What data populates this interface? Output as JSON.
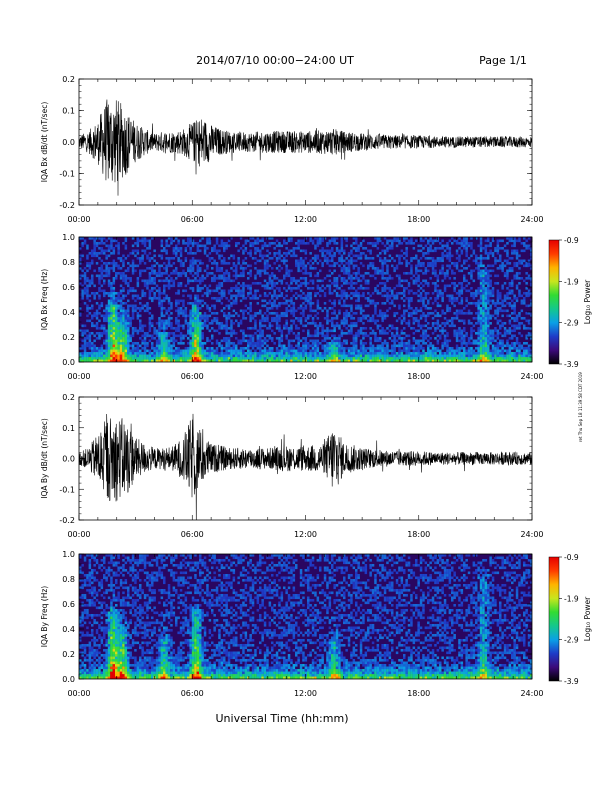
{
  "header": {
    "title": "2014/07/10  00:00−24:00 UT",
    "page": "Page 1/1"
  },
  "footer": {
    "xlabel": "Universal Time (hh:mm)",
    "side_note": "ret Thu Sep 18 11:39:58 CDT 2019"
  },
  "colorbar": {
    "label": "Log₁₀ Power",
    "ticks": [
      "-0.9",
      "-1.9",
      "-2.9",
      "-3.9"
    ],
    "stops": [
      "#000000",
      "#3c0a7a",
      "#1e3cc8",
      "#0aa0e6",
      "#14c88c",
      "#32dc32",
      "#c8e61e",
      "#ffb400",
      "#ff3c00",
      "#e60000"
    ]
  },
  "chart_data": [
    {
      "type": "line",
      "ylabel": "IQA Bx dB/dt (nT/sec)",
      "x_ticks": [
        "00:00",
        "06:00",
        "12:00",
        "18:00",
        "24:00"
      ],
      "y_ticks": [
        "0.2",
        "0.1",
        "0.0",
        "-0.1",
        "-0.2"
      ],
      "xlim": [
        0,
        24
      ],
      "ylim": [
        -0.2,
        0.2
      ],
      "envelope": {
        "x": [
          0,
          0.5,
          1,
          1.5,
          2,
          2.5,
          3,
          3.5,
          4,
          4.5,
          5,
          5.5,
          6,
          6.5,
          7,
          7.5,
          8,
          9,
          10,
          11,
          12,
          13,
          13.5,
          14,
          15,
          16,
          17,
          18,
          19,
          20,
          21,
          22,
          23,
          24
        ],
        "amplitude": [
          0.03,
          0.05,
          0.1,
          0.2,
          0.2,
          0.15,
          0.09,
          0.06,
          0.04,
          0.05,
          0.05,
          0.06,
          0.09,
          0.12,
          0.08,
          0.06,
          0.05,
          0.045,
          0.05,
          0.05,
          0.05,
          0.055,
          0.06,
          0.05,
          0.04,
          0.035,
          0.03,
          0.03,
          0.025,
          0.025,
          0.025,
          0.025,
          0.025,
          0.025
        ]
      }
    },
    {
      "type": "heatmap",
      "ylabel": "IQA Bx Freq (Hz)",
      "x_ticks": [
        "00:00",
        "06:00",
        "12:00",
        "18:00",
        "24:00"
      ],
      "y_ticks": [
        "1.0",
        "0.8",
        "0.6",
        "0.4",
        "0.2",
        "0.0"
      ],
      "xlim": [
        0,
        24
      ],
      "ylim": [
        0,
        1.0
      ],
      "zlim": [
        -3.9,
        -0.9
      ],
      "bursts": [
        {
          "x": 1.8,
          "peak_freq": 0.45,
          "intensity": 0.9
        },
        {
          "x": 2.3,
          "peak_freq": 0.3,
          "intensity": 0.7
        },
        {
          "x": 4.5,
          "peak_freq": 0.2,
          "intensity": 0.4
        },
        {
          "x": 6.2,
          "peak_freq": 0.4,
          "intensity": 0.8
        },
        {
          "x": 13.5,
          "peak_freq": 0.15,
          "intensity": 0.35
        },
        {
          "x": 21.4,
          "peak_freq": 0.75,
          "intensity": 0.45
        }
      ]
    },
    {
      "type": "line",
      "ylabel": "IQA By dB/dt (nT/sec)",
      "x_ticks": [
        "00:00",
        "06:00",
        "12:00",
        "18:00",
        "24:00"
      ],
      "y_ticks": [
        "0.2",
        "0.1",
        "0.0",
        "-0.1",
        "-0.2"
      ],
      "xlim": [
        0,
        24
      ],
      "ylim": [
        -0.2,
        0.2
      ],
      "envelope": {
        "x": [
          0,
          0.5,
          1,
          1.5,
          2,
          2.5,
          3,
          3.5,
          4,
          4.5,
          5,
          5.5,
          6,
          6.5,
          7,
          7.5,
          8,
          9,
          10,
          11,
          12,
          13,
          13.5,
          14,
          15,
          16,
          17,
          18,
          19,
          20,
          21,
          22,
          23,
          24
        ],
        "amplitude": [
          0.03,
          0.05,
          0.12,
          0.2,
          0.2,
          0.18,
          0.1,
          0.07,
          0.05,
          0.05,
          0.06,
          0.1,
          0.2,
          0.12,
          0.07,
          0.06,
          0.05,
          0.05,
          0.05,
          0.06,
          0.06,
          0.07,
          0.17,
          0.08,
          0.05,
          0.04,
          0.035,
          0.035,
          0.03,
          0.03,
          0.03,
          0.03,
          0.03,
          0.03
        ]
      }
    },
    {
      "type": "heatmap",
      "ylabel": "IQA By Freq (Hz)",
      "x_ticks": [
        "00:00",
        "06:00",
        "12:00",
        "18:00",
        "24:00"
      ],
      "y_ticks": [
        "1.0",
        "0.8",
        "0.6",
        "0.4",
        "0.2",
        "0.0"
      ],
      "xlim": [
        0,
        24
      ],
      "ylim": [
        0,
        1.0
      ],
      "zlim": [
        -3.9,
        -0.9
      ],
      "bursts": [
        {
          "x": 1.8,
          "peak_freq": 0.5,
          "intensity": 0.95
        },
        {
          "x": 2.3,
          "peak_freq": 0.35,
          "intensity": 0.75
        },
        {
          "x": 4.5,
          "peak_freq": 0.3,
          "intensity": 0.5
        },
        {
          "x": 6.2,
          "peak_freq": 0.5,
          "intensity": 0.85
        },
        {
          "x": 13.5,
          "peak_freq": 0.3,
          "intensity": 0.45
        },
        {
          "x": 21.4,
          "peak_freq": 0.8,
          "intensity": 0.45
        }
      ]
    }
  ]
}
